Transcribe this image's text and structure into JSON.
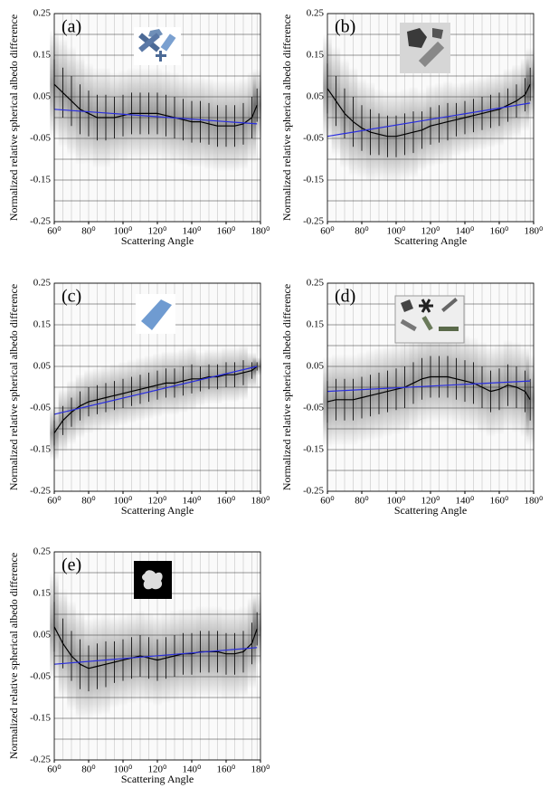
{
  "chart_data": [
    {
      "type": "line",
      "panel_label": "(a)",
      "xlabel": "Scattering Angle",
      "ylabel": "Normalized relative spherical albedo difference",
      "xlim": [
        60,
        180
      ],
      "ylim": [
        -0.25,
        0.25
      ],
      "xticks": [
        {
          "value": 60,
          "label": "60⁰"
        },
        {
          "value": 80,
          "label": "80⁰"
        },
        {
          "value": 100,
          "label": "100⁰"
        },
        {
          "value": 120,
          "label": "120⁰"
        },
        {
          "value": 140,
          "label": "140⁰"
        },
        {
          "value": 160,
          "label": "160⁰"
        },
        {
          "value": 180,
          "label": "180⁰"
        }
      ],
      "yticks": [
        0.25,
        0.15,
        0.05,
        -0.05,
        -0.15,
        -0.25
      ],
      "yminor": [
        0.2,
        0.1,
        0,
        -0.1,
        -0.2
      ],
      "grid": true,
      "x": [
        60,
        65,
        70,
        75,
        80,
        85,
        90,
        95,
        100,
        105,
        110,
        115,
        120,
        125,
        130,
        135,
        140,
        145,
        150,
        155,
        160,
        165,
        170,
        175,
        178
      ],
      "series": [
        {
          "color": "#000000",
          "values": [
            0.08,
            0.06,
            0.04,
            0.02,
            0.01,
            0.0,
            0.0,
            0.0,
            0.005,
            0.01,
            0.01,
            0.01,
            0.01,
            0.005,
            0.0,
            -0.005,
            -0.01,
            -0.01,
            -0.015,
            -0.02,
            -0.02,
            -0.02,
            -0.015,
            0.0,
            0.03
          ],
          "errors": [
            0.06,
            0.06,
            0.06,
            0.06,
            0.055,
            0.055,
            0.055,
            0.05,
            0.05,
            0.05,
            0.05,
            0.05,
            0.05,
            0.05,
            0.05,
            0.05,
            0.05,
            0.05,
            0.05,
            0.05,
            0.05,
            0.05,
            0.05,
            0.05,
            0.04
          ]
        },
        {
          "color": "#2a2ee0",
          "x": [
            60,
            178
          ],
          "values": [
            0.02,
            -0.015
          ]
        }
      ]
    },
    {
      "type": "line",
      "panel_label": "(b)",
      "xlabel": "Scattering Angle",
      "ylabel": "Normalized relative spherical albedo difference",
      "xlim": [
        60,
        180
      ],
      "ylim": [
        -0.25,
        0.25
      ],
      "xticks": [
        {
          "value": 60,
          "label": "60⁰"
        },
        {
          "value": 80,
          "label": "80⁰"
        },
        {
          "value": 100,
          "label": "100⁰"
        },
        {
          "value": 120,
          "label": "120⁰"
        },
        {
          "value": 140,
          "label": "140⁰"
        },
        {
          "value": 160,
          "label": "160⁰"
        },
        {
          "value": 180,
          "label": "180⁰"
        }
      ],
      "yticks": [
        0.25,
        0.15,
        0.05,
        -0.05,
        -0.15,
        -0.25
      ],
      "yminor": [
        0.2,
        0.1,
        0,
        -0.1,
        -0.2
      ],
      "grid": true,
      "x": [
        60,
        65,
        70,
        75,
        80,
        85,
        90,
        95,
        100,
        105,
        110,
        115,
        120,
        125,
        130,
        135,
        140,
        145,
        150,
        155,
        160,
        165,
        170,
        175,
        178
      ],
      "series": [
        {
          "color": "#000000",
          "values": [
            0.07,
            0.04,
            0.01,
            -0.01,
            -0.025,
            -0.035,
            -0.04,
            -0.045,
            -0.045,
            -0.04,
            -0.035,
            -0.03,
            -0.02,
            -0.015,
            -0.01,
            -0.005,
            0.0,
            0.005,
            0.01,
            0.015,
            0.02,
            0.03,
            0.04,
            0.055,
            0.08
          ],
          "errors": [
            0.06,
            0.06,
            0.06,
            0.06,
            0.055,
            0.055,
            0.05,
            0.05,
            0.05,
            0.05,
            0.05,
            0.045,
            0.045,
            0.045,
            0.045,
            0.04,
            0.04,
            0.04,
            0.04,
            0.04,
            0.04,
            0.04,
            0.04,
            0.04,
            0.04
          ]
        },
        {
          "color": "#2a2ee0",
          "x": [
            60,
            178
          ],
          "values": [
            -0.045,
            0.035
          ]
        }
      ]
    },
    {
      "type": "line",
      "panel_label": "(c)",
      "xlabel": "Scattering Angle",
      "ylabel": "Normalized relative spherical albedo difference",
      "xlim": [
        60,
        180
      ],
      "ylim": [
        -0.25,
        0.25
      ],
      "xticks": [
        {
          "value": 60,
          "label": "60⁰"
        },
        {
          "value": 80,
          "label": "80⁰"
        },
        {
          "value": 100,
          "label": "100⁰"
        },
        {
          "value": 120,
          "label": "120⁰"
        },
        {
          "value": 140,
          "label": "140⁰"
        },
        {
          "value": 160,
          "label": "160⁰"
        },
        {
          "value": 180,
          "label": "180⁰"
        }
      ],
      "yticks": [
        0.25,
        0.15,
        0.05,
        -0.05,
        -0.15,
        -0.25
      ],
      "yminor": [
        0.2,
        0.1,
        0,
        -0.1,
        -0.2
      ],
      "grid": true,
      "x": [
        60,
        65,
        70,
        75,
        80,
        85,
        90,
        95,
        100,
        105,
        110,
        115,
        120,
        125,
        130,
        135,
        140,
        145,
        150,
        155,
        160,
        165,
        170,
        175,
        178
      ],
      "series": [
        {
          "color": "#000000",
          "values": [
            -0.11,
            -0.08,
            -0.06,
            -0.045,
            -0.035,
            -0.03,
            -0.025,
            -0.02,
            -0.015,
            -0.01,
            -0.005,
            0.0,
            0.005,
            0.01,
            0.01,
            0.015,
            0.02,
            0.02,
            0.025,
            0.025,
            0.03,
            0.03,
            0.035,
            0.04,
            0.05
          ],
          "errors": [
            0.03,
            0.035,
            0.035,
            0.035,
            0.035,
            0.035,
            0.035,
            0.035,
            0.035,
            0.035,
            0.035,
            0.035,
            0.035,
            0.035,
            0.035,
            0.035,
            0.035,
            0.03,
            0.03,
            0.03,
            0.03,
            0.03,
            0.03,
            0.02,
            0.01
          ]
        },
        {
          "color": "#2a2ee0",
          "x": [
            60,
            178
          ],
          "values": [
            -0.065,
            0.05
          ]
        }
      ]
    },
    {
      "type": "line",
      "panel_label": "(d)",
      "xlabel": "Scattering Angle",
      "ylabel": "Normalized relative spherical albedo difference",
      "xlim": [
        60,
        180
      ],
      "ylim": [
        -0.25,
        0.25
      ],
      "xticks": [
        {
          "value": 60,
          "label": "60⁰"
        },
        {
          "value": 80,
          "label": "80⁰"
        },
        {
          "value": 100,
          "label": "100⁰"
        },
        {
          "value": 120,
          "label": "120⁰"
        },
        {
          "value": 140,
          "label": "140⁰"
        },
        {
          "value": 160,
          "label": "160⁰"
        },
        {
          "value": 180,
          "label": "180⁰"
        }
      ],
      "yticks": [
        0.25,
        0.15,
        0.05,
        -0.05,
        -0.15,
        -0.25
      ],
      "yminor": [
        0.2,
        0.1,
        0,
        -0.1,
        -0.2
      ],
      "grid": true,
      "x": [
        60,
        65,
        70,
        75,
        80,
        85,
        90,
        95,
        100,
        105,
        110,
        115,
        120,
        125,
        130,
        135,
        140,
        145,
        150,
        155,
        160,
        165,
        170,
        175,
        178
      ],
      "series": [
        {
          "color": "#000000",
          "values": [
            -0.035,
            -0.03,
            -0.03,
            -0.03,
            -0.025,
            -0.02,
            -0.015,
            -0.01,
            -0.005,
            0.0,
            0.01,
            0.02,
            0.025,
            0.025,
            0.025,
            0.02,
            0.015,
            0.01,
            0.0,
            -0.01,
            -0.005,
            0.005,
            0.0,
            -0.01,
            -0.03
          ],
          "errors": [
            0.05,
            0.05,
            0.05,
            0.05,
            0.05,
            0.05,
            0.05,
            0.05,
            0.05,
            0.05,
            0.05,
            0.05,
            0.05,
            0.05,
            0.05,
            0.05,
            0.05,
            0.05,
            0.05,
            0.05,
            0.05,
            0.05,
            0.05,
            0.05,
            0.05
          ]
        },
        {
          "color": "#2a2ee0",
          "x": [
            60,
            178
          ],
          "values": [
            -0.01,
            0.015
          ]
        }
      ]
    },
    {
      "type": "line",
      "panel_label": "(e)",
      "xlabel": "Scattering Angle",
      "ylabel": "Normalized relative spherical albedo difference",
      "xlim": [
        60,
        180
      ],
      "ylim": [
        -0.25,
        0.25
      ],
      "xticks": [
        {
          "value": 60,
          "label": "60⁰"
        },
        {
          "value": 80,
          "label": "80⁰"
        },
        {
          "value": 100,
          "label": "100⁰"
        },
        {
          "value": 120,
          "label": "120⁰"
        },
        {
          "value": 140,
          "label": "140⁰"
        },
        {
          "value": 160,
          "label": "160⁰"
        },
        {
          "value": 180,
          "label": "180⁰"
        }
      ],
      "yticks": [
        0.25,
        0.15,
        0.05,
        -0.05,
        -0.15,
        -0.25
      ],
      "yminor": [
        0.2,
        0.1,
        0,
        -0.1,
        -0.2
      ],
      "grid": true,
      "x": [
        60,
        65,
        70,
        75,
        80,
        85,
        90,
        95,
        100,
        105,
        110,
        115,
        120,
        125,
        130,
        135,
        140,
        145,
        150,
        155,
        160,
        165,
        170,
        175,
        178
      ],
      "series": [
        {
          "color": "#000000",
          "values": [
            0.07,
            0.03,
            0.0,
            -0.02,
            -0.03,
            -0.025,
            -0.02,
            -0.015,
            -0.01,
            -0.005,
            0.0,
            -0.005,
            -0.01,
            -0.005,
            0.0,
            0.005,
            0.005,
            0.01,
            0.01,
            0.01,
            0.005,
            0.005,
            0.01,
            0.03,
            0.065
          ],
          "errors": [
            0.06,
            0.06,
            0.06,
            0.06,
            0.055,
            0.055,
            0.055,
            0.05,
            0.05,
            0.05,
            0.05,
            0.05,
            0.05,
            0.05,
            0.05,
            0.05,
            0.05,
            0.05,
            0.05,
            0.05,
            0.05,
            0.05,
            0.05,
            0.05,
            0.04
          ]
        },
        {
          "color": "#2a2ee0",
          "x": [
            60,
            178
          ],
          "values": [
            -0.02,
            0.02
          ]
        }
      ]
    }
  ]
}
